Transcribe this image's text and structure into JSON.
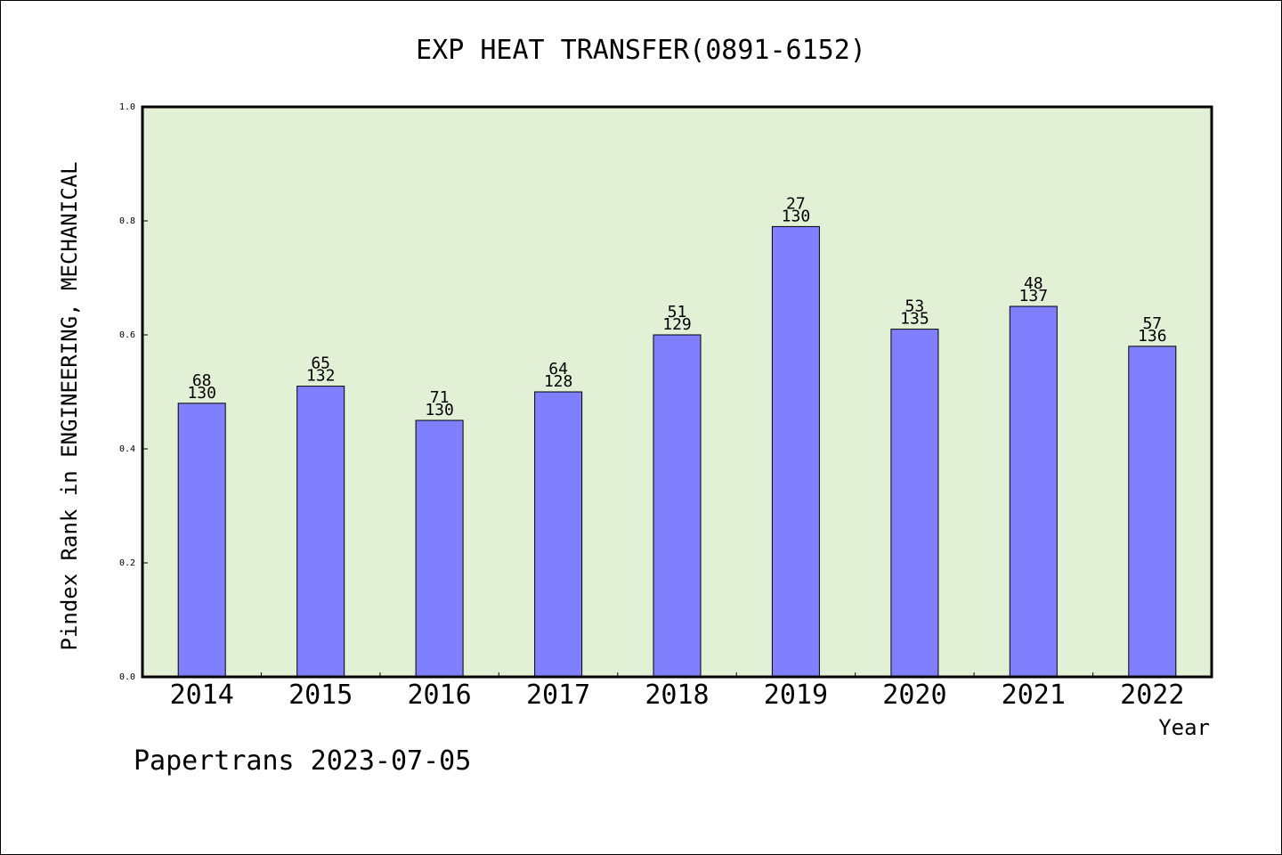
{
  "chart_data": {
    "type": "bar",
    "title": "EXP HEAT TRANSFER(0891-6152)",
    "xlabel": "Year",
    "ylabel": "Pindex Rank in ENGINEERING, MECHANICAL",
    "ylim": [
      0,
      1.0
    ],
    "yticks": [
      "0.0",
      "0.2",
      "0.4",
      "0.6",
      "0.8",
      "1.0"
    ],
    "categories": [
      "2014",
      "2015",
      "2016",
      "2017",
      "2018",
      "2019",
      "2020",
      "2021",
      "2022"
    ],
    "values": [
      0.48,
      0.51,
      0.45,
      0.5,
      0.6,
      0.79,
      0.61,
      0.65,
      0.58
    ],
    "rank": [
      "68",
      "65",
      "71",
      "64",
      "51",
      "27",
      "53",
      "48",
      "57"
    ],
    "total": [
      "130",
      "132",
      "130",
      "128",
      "129",
      "130",
      "135",
      "137",
      "136"
    ],
    "grid": false,
    "colors": {
      "bar": "#8080ff",
      "plot_background": "#e2f0d6"
    }
  },
  "footer": "Papertrans 2023-07-05"
}
